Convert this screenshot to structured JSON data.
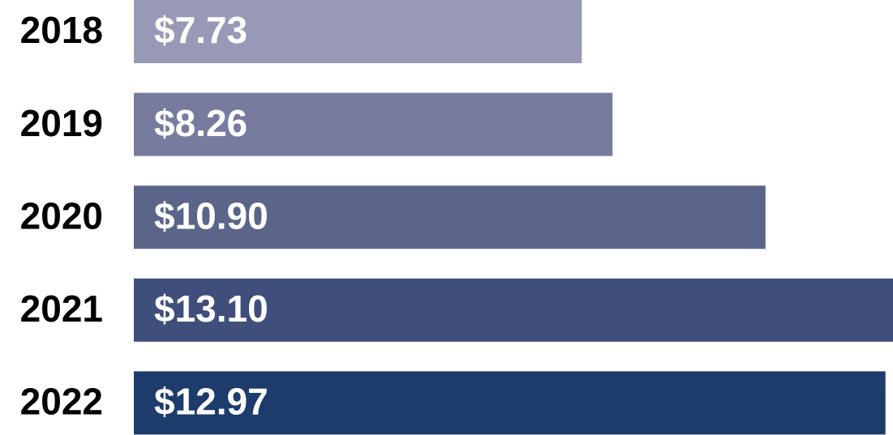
{
  "chart_data": {
    "type": "bar",
    "orientation": "horizontal",
    "categories": [
      "2018",
      "2019",
      "2020",
      "2021",
      "2022"
    ],
    "values": [
      7.73,
      8.26,
      10.9,
      13.1,
      12.97
    ],
    "value_labels": [
      "$7.73",
      "$8.26",
      "$10.90",
      "$13.10",
      "$12.97"
    ],
    "colors": [
      "#9899b6",
      "#777b9e",
      "#5a6589",
      "#3f4e7a",
      "#1d3c6c"
    ]
  }
}
